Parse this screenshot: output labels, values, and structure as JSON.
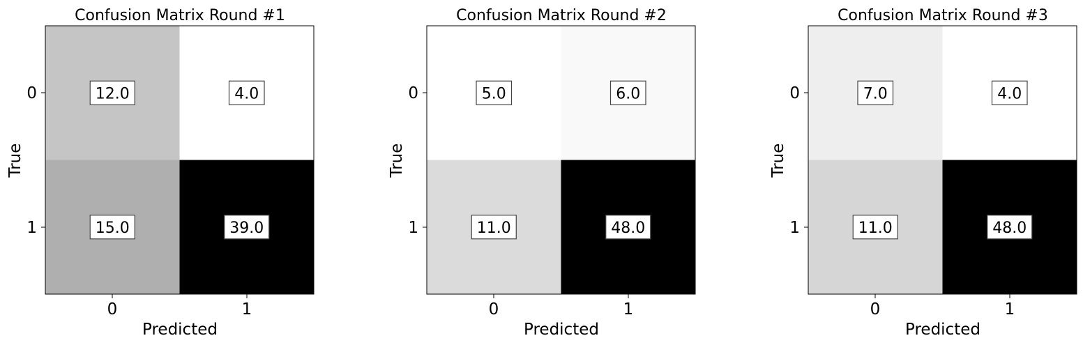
{
  "chart_data": [
    {
      "type": "heatmap",
      "title": "Confusion Matrix Round #1",
      "xlabel": "Predicted",
      "ylabel": "True",
      "x_categories": [
        "0",
        "1"
      ],
      "y_categories": [
        "0",
        "1"
      ],
      "values": [
        [
          12.0,
          4.0
        ],
        [
          15.0,
          39.0
        ]
      ],
      "value_labels": [
        [
          "12.0",
          "4.0"
        ],
        [
          "15.0",
          "39.0"
        ]
      ],
      "colormap": "grayscale (white = low, black = high)"
    },
    {
      "type": "heatmap",
      "title": "Confusion Matrix Round #2",
      "xlabel": "Predicted",
      "ylabel": "True",
      "x_categories": [
        "0",
        "1"
      ],
      "y_categories": [
        "0",
        "1"
      ],
      "values": [
        [
          5.0,
          6.0
        ],
        [
          11.0,
          48.0
        ]
      ],
      "value_labels": [
        [
          "5.0",
          "6.0"
        ],
        [
          "11.0",
          "48.0"
        ]
      ],
      "colormap": "grayscale (white = low, black = high)"
    },
    {
      "type": "heatmap",
      "title": "Confusion Matrix Round #3",
      "xlabel": "Predicted",
      "ylabel": "True",
      "x_categories": [
        "0",
        "1"
      ],
      "y_categories": [
        "0",
        "1"
      ],
      "values": [
        [
          7.0,
          4.0
        ],
        [
          11.0,
          48.0
        ]
      ],
      "value_labels": [
        [
          "7.0",
          "4.0"
        ],
        [
          "11.0",
          "48.0"
        ]
      ],
      "colormap": "grayscale (white = low, black = high)"
    }
  ]
}
